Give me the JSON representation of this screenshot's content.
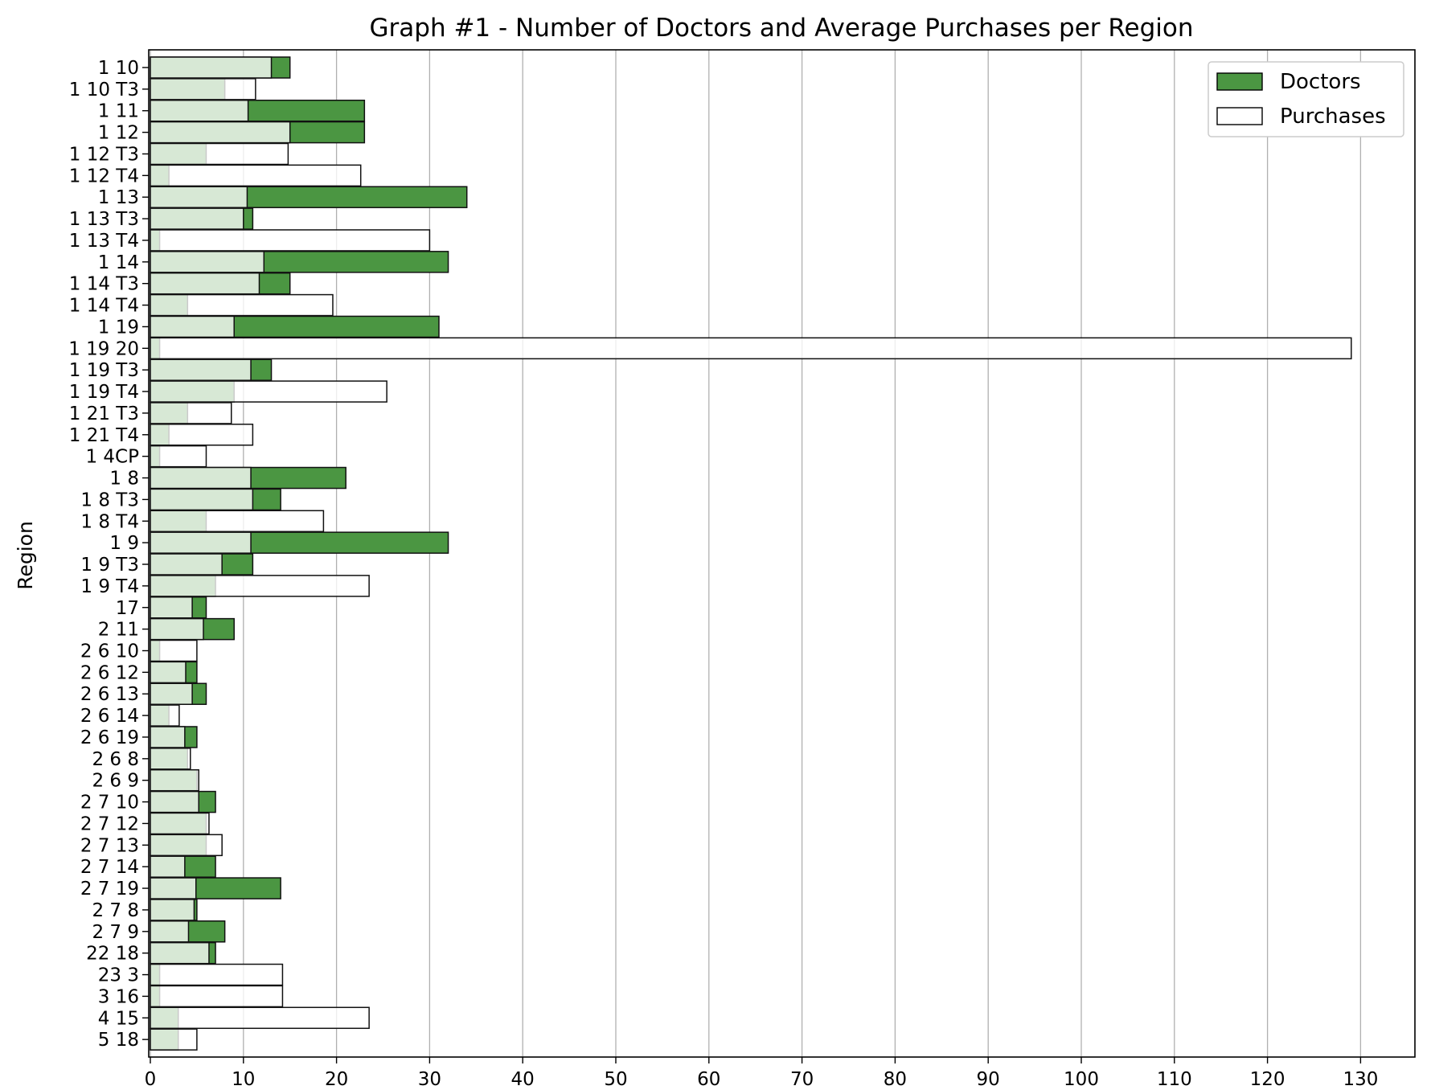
{
  "chart_data": {
    "type": "bar",
    "orientation": "horizontal",
    "title": "Graph #1 - Number of Doctors and Average Purchases per Region",
    "ylabel": "Region",
    "xlabel": "",
    "xlim": [
      0,
      136
    ],
    "xticks": [
      0,
      10,
      20,
      30,
      40,
      50,
      60,
      70,
      80,
      90,
      100,
      110,
      120,
      130
    ],
    "grid": "vertical",
    "legend_position": "top-right",
    "categories": [
      "1 10",
      "1 10 T3",
      "1 11",
      "1 12",
      "1 12 T3",
      "1 12 T4",
      "1 13",
      "1 13 T3",
      "1 13 T4",
      "1 14",
      "1 14 T3",
      "1 14 T4",
      "1 19",
      "1 19 20",
      "1 19 T3",
      "1 19 T4",
      "1 21 T3",
      "1 21 T4",
      "1 4CP",
      "1 8",
      "1 8 T3",
      "1 8 T4",
      "1 9",
      "1 9 T3",
      "1 9 T4",
      "17",
      "2 11",
      "2 6 10",
      "2 6 12",
      "2 6 13",
      "2 6 14",
      "2 6 19",
      "2 6 8",
      "2 6 9",
      "2 7 10",
      "2 7 12",
      "2 7 13",
      "2 7 14",
      "2 7 19",
      "2 7 8",
      "2 7 9",
      "22 18",
      "23 3",
      "3 16",
      "4 15",
      "5 18"
    ],
    "series": [
      {
        "name": "Doctors",
        "color": "#4b9642",
        "values": [
          15,
          8,
          23,
          23,
          6,
          2,
          34,
          11,
          1,
          32,
          15,
          4,
          31,
          1,
          13,
          9,
          4,
          2,
          1,
          21,
          14,
          6,
          32,
          11,
          7,
          6,
          9,
          1,
          5,
          6,
          2,
          5,
          4,
          5,
          7,
          6,
          6,
          7,
          14,
          5,
          8,
          7,
          1,
          1,
          3,
          3
        ]
      },
      {
        "name": "Purchases",
        "color": "#ffffff",
        "values": [
          13,
          11.3,
          10.5,
          15,
          14.8,
          22.6,
          10.4,
          10,
          30,
          12.2,
          11.7,
          19.6,
          9,
          129,
          10.8,
          25.4,
          8.7,
          11,
          6,
          10.8,
          11,
          18.6,
          10.8,
          7.7,
          23.5,
          4.5,
          5.7,
          5,
          3.8,
          4.5,
          3.1,
          3.7,
          4.3,
          5.2,
          5.2,
          6.3,
          7.7,
          3.7,
          4.9,
          4.7,
          4.1,
          6.3,
          14.2,
          14.2,
          23.5,
          5
        ]
      }
    ]
  }
}
